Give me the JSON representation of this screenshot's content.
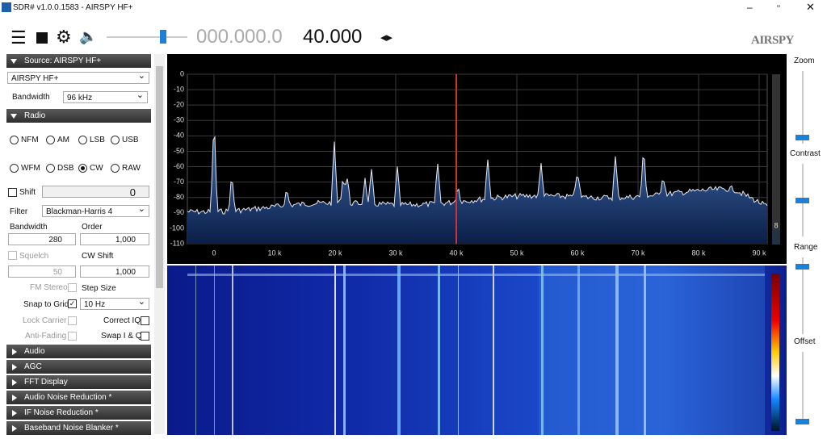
{
  "window": {
    "title": "SDR# v1.0.0.1583 - AIRSPY HF+"
  },
  "toolbar": {
    "frequency_dim": "000.000.0",
    "frequency": "40.000",
    "logo": "AIRSPY"
  },
  "source_panel": {
    "header": "Source: AIRSPY HF+",
    "device": "AIRSPY HF+",
    "bandwidth_label": "Bandwidth",
    "bandwidth": "96 kHz"
  },
  "radio_panel": {
    "header": "Radio",
    "modes": [
      "NFM",
      "AM",
      "LSB",
      "USB",
      "WFM",
      "DSB",
      "CW",
      "RAW"
    ],
    "selected_mode": "CW",
    "shift_label": "Shift",
    "shift": "0",
    "filter_label": "Filter",
    "filter": "Blackman-Harris 4",
    "bandwidth_label": "Bandwidth",
    "bandwidth": "280",
    "order_label": "Order",
    "order": "1,000",
    "squelch_label": "Squelch",
    "squelch": "50",
    "cw_shift_label": "CW Shift",
    "cw_shift": "1,000",
    "fm_stereo": "FM Stereo",
    "step_size_label": "Step Size",
    "snap_label": "Snap to Grid",
    "step_size": "10 Hz",
    "lock_carrier": "Lock Carrier",
    "correct_iq": "Correct IQ",
    "anti_fading": "Anti-Fading",
    "swap_iq": "Swap I & Q"
  },
  "collapsed_panels": [
    "Audio",
    "AGC",
    "FFT Display",
    "Audio Noise Reduction *",
    "IF Noise Reduction *",
    "Baseband Noise Blanker *"
  ],
  "spectrum": {
    "yticks": [
      "0",
      "-10",
      "-20",
      "-30",
      "-40",
      "-50",
      "-60",
      "-70",
      "-80",
      "-90",
      "-100",
      "-110"
    ],
    "xticks": [
      "0",
      "10 k",
      "20 k",
      "30 k",
      "40 k",
      "50 k",
      "60 k",
      "70 k",
      "80 k",
      "90 k"
    ],
    "level_label": "8"
  },
  "side_controls": {
    "zoom": "Zoom",
    "contrast": "Contrast",
    "range": "Range",
    "offset": "Offset"
  }
}
